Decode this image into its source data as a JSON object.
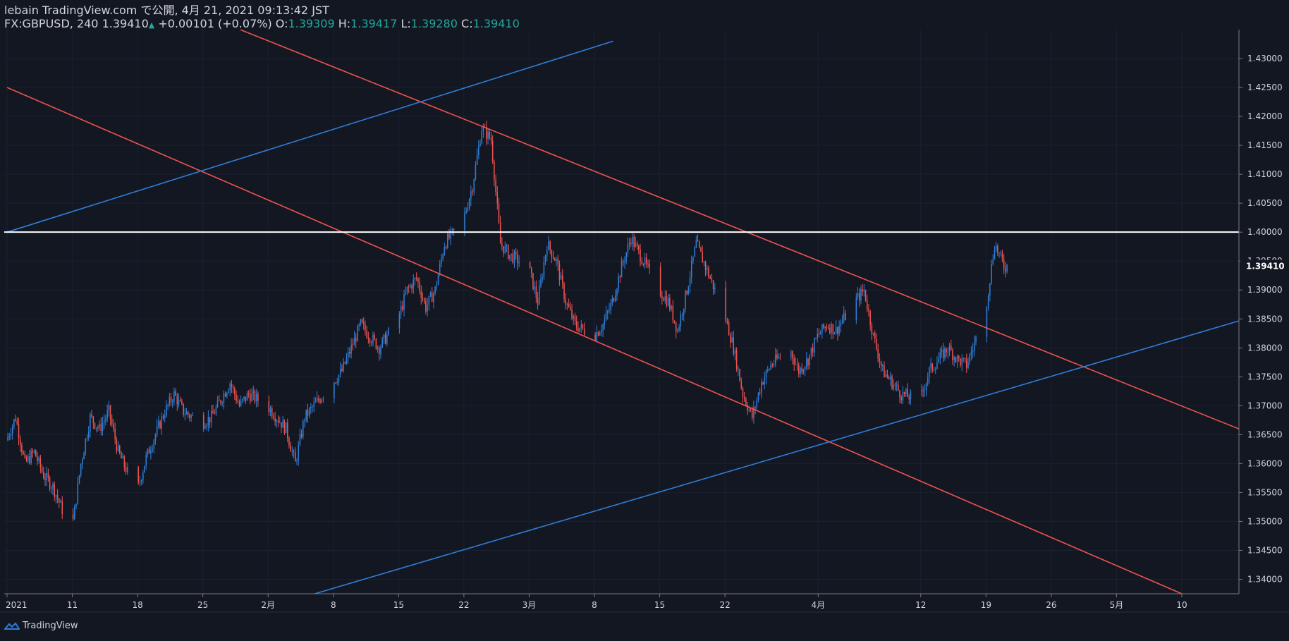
{
  "header": {
    "publisher": "lebain TradingView.com で公開, 4月 21, 2021 09:13:42 JST",
    "symbol": "FX:GBPUSD, 240",
    "last": "1.39410",
    "change": "+0.00101 (+0.07%)",
    "o_label": "O:",
    "o_value": "1.39309",
    "h_label": "H:",
    "h_value": "1.39417",
    "l_label": "L:",
    "l_value": "1.39280",
    "c_label": "C:",
    "c_value": "1.39410"
  },
  "footer": {
    "brand": "TradingView"
  },
  "colors": {
    "background": "#131722",
    "up": "#2f7ed8",
    "down": "#ef5350",
    "red_line": "#ef5350",
    "blue_line": "#2f7ed8",
    "level_line": "#ffffff",
    "text": "#d1d4dc"
  },
  "chart_data": {
    "type": "candlestick",
    "symbol": "FX:GBPUSD",
    "interval": "240",
    "ylim": [
      1.3375,
      1.435
    ],
    "y_ticks": [
      "1.43000",
      "1.42500",
      "1.42000",
      "1.41500",
      "1.41000",
      "1.40500",
      "1.40000",
      "1.39500",
      "1.39000",
      "1.38500",
      "1.38000",
      "1.37500",
      "1.37000",
      "1.36500",
      "1.36000",
      "1.35500",
      "1.35000",
      "1.34500",
      "1.34000"
    ],
    "current_price_label": "1.39410",
    "current_price": 1.3941,
    "x_ticks": [
      {
        "label": "2021",
        "date": "2021-01-04"
      },
      {
        "label": "11",
        "date": "2021-01-11"
      },
      {
        "label": "18",
        "date": "2021-01-18"
      },
      {
        "label": "25",
        "date": "2021-01-25"
      },
      {
        "label": "2月",
        "date": "2021-02-01"
      },
      {
        "label": "8",
        "date": "2021-02-08"
      },
      {
        "label": "15",
        "date": "2021-02-15"
      },
      {
        "label": "22",
        "date": "2021-02-22"
      },
      {
        "label": "3月",
        "date": "2021-03-01"
      },
      {
        "label": "8",
        "date": "2021-03-08"
      },
      {
        "label": "15",
        "date": "2021-03-15"
      },
      {
        "label": "22",
        "date": "2021-03-22"
      },
      {
        "label": "4月",
        "date": "2021-04-01"
      },
      {
        "label": "12",
        "date": "2021-04-12"
      },
      {
        "label": "19",
        "date": "2021-04-19"
      },
      {
        "label": "26",
        "date": "2021-04-26"
      },
      {
        "label": "5月",
        "date": "2021-05-03"
      },
      {
        "label": "10",
        "date": "2021-05-10"
      }
    ],
    "price_path": [
      [
        "2021-01-04",
        1.364
      ],
      [
        "2021-01-05",
        1.368
      ],
      [
        "2021-01-06",
        1.36
      ],
      [
        "2021-01-07",
        1.362
      ],
      [
        "2021-01-08",
        1.358
      ],
      [
        "2021-01-09",
        1.356
      ],
      [
        "2021-01-11",
        1.348
      ],
      [
        "2021-01-12",
        1.36
      ],
      [
        "2021-01-13",
        1.368
      ],
      [
        "2021-01-14",
        1.366
      ],
      [
        "2021-01-15",
        1.369
      ],
      [
        "2021-01-16",
        1.362
      ],
      [
        "2021-01-18",
        1.355
      ],
      [
        "2021-01-19",
        1.361
      ],
      [
        "2021-01-20",
        1.365
      ],
      [
        "2021-01-21",
        1.369
      ],
      [
        "2021-01-22",
        1.372
      ],
      [
        "2021-01-23",
        1.369
      ],
      [
        "2021-01-25",
        1.367
      ],
      [
        "2021-01-26",
        1.368
      ],
      [
        "2021-01-27",
        1.371
      ],
      [
        "2021-01-28",
        1.374
      ],
      [
        "2021-01-29",
        1.37
      ],
      [
        "2021-01-30",
        1.372
      ],
      [
        "2021-02-01",
        1.37
      ],
      [
        "2021-02-02",
        1.368
      ],
      [
        "2021-02-03",
        1.366
      ],
      [
        "2021-02-04",
        1.36
      ],
      [
        "2021-02-05",
        1.368
      ],
      [
        "2021-02-06",
        1.37
      ],
      [
        "2021-02-08",
        1.374
      ],
      [
        "2021-02-09",
        1.376
      ],
      [
        "2021-02-10",
        1.38
      ],
      [
        "2021-02-11",
        1.384
      ],
      [
        "2021-02-12",
        1.382
      ],
      [
        "2021-02-13",
        1.38
      ],
      [
        "2021-02-15",
        1.385
      ],
      [
        "2021-02-16",
        1.39
      ],
      [
        "2021-02-17",
        1.392
      ],
      [
        "2021-02-18",
        1.387
      ],
      [
        "2021-02-19",
        1.39
      ],
      [
        "2021-02-20",
        1.398
      ],
      [
        "2021-02-22",
        1.402
      ],
      [
        "2021-02-23",
        1.408
      ],
      [
        "2021-02-24",
        1.418
      ],
      [
        "2021-02-25",
        1.416
      ],
      [
        "2021-02-26",
        1.398
      ],
      [
        "2021-02-27",
        1.396
      ],
      [
        "2021-03-01",
        1.394
      ],
      [
        "2021-03-02",
        1.388
      ],
      [
        "2021-03-03",
        1.398
      ],
      [
        "2021-03-04",
        1.395
      ],
      [
        "2021-03-05",
        1.388
      ],
      [
        "2021-03-06",
        1.384
      ],
      [
        "2021-03-08",
        1.382
      ],
      [
        "2021-03-09",
        1.384
      ],
      [
        "2021-03-10",
        1.388
      ],
      [
        "2021-03-11",
        1.394
      ],
      [
        "2021-03-12",
        1.399
      ],
      [
        "2021-03-13",
        1.396
      ],
      [
        "2021-03-15",
        1.39
      ],
      [
        "2021-03-16",
        1.388
      ],
      [
        "2021-03-17",
        1.383
      ],
      [
        "2021-03-18",
        1.39
      ],
      [
        "2021-03-19",
        1.398
      ],
      [
        "2021-03-20",
        1.394
      ],
      [
        "2021-03-22",
        1.386
      ],
      [
        "2021-03-23",
        1.38
      ],
      [
        "2021-03-24",
        1.372
      ],
      [
        "2021-03-25",
        1.368
      ],
      [
        "2021-03-26",
        1.374
      ],
      [
        "2021-03-27",
        1.377
      ],
      [
        "2021-03-29",
        1.38
      ],
      [
        "2021-03-30",
        1.376
      ],
      [
        "2021-03-31",
        1.378
      ],
      [
        "2021-04-01",
        1.382
      ],
      [
        "2021-04-02",
        1.384
      ],
      [
        "2021-04-03",
        1.383
      ],
      [
        "2021-04-05",
        1.388
      ],
      [
        "2021-04-06",
        1.39
      ],
      [
        "2021-04-07",
        1.382
      ],
      [
        "2021-04-08",
        1.376
      ],
      [
        "2021-04-09",
        1.374
      ],
      [
        "2021-04-10",
        1.372
      ],
      [
        "2021-04-12",
        1.371
      ],
      [
        "2021-04-13",
        1.376
      ],
      [
        "2021-04-14",
        1.378
      ],
      [
        "2021-04-15",
        1.38
      ],
      [
        "2021-04-16",
        1.378
      ],
      [
        "2021-04-17",
        1.377
      ],
      [
        "2021-04-19",
        1.386
      ],
      [
        "2021-04-20",
        1.398
      ],
      [
        "2021-04-21",
        1.3941
      ]
    ],
    "trendlines": [
      {
        "color": "red",
        "from": [
          "2021-01-04",
          1.425
        ],
        "to": [
          "2021-05-10",
          1.3375
        ]
      },
      {
        "color": "red",
        "from": [
          "2021-01-29",
          1.435
        ],
        "to": [
          "2021-05-20",
          1.3635
        ]
      },
      {
        "color": "blue",
        "from": [
          "2021-01-04",
          1.4
        ],
        "to": [
          "2021-03-10",
          1.433
        ]
      },
      {
        "color": "blue",
        "from": [
          "2021-02-06",
          1.3375
        ],
        "to": [
          "2021-05-20",
          1.3865
        ]
      }
    ],
    "horizontal_levels": [
      {
        "price": 1.4,
        "color": "white"
      }
    ]
  }
}
